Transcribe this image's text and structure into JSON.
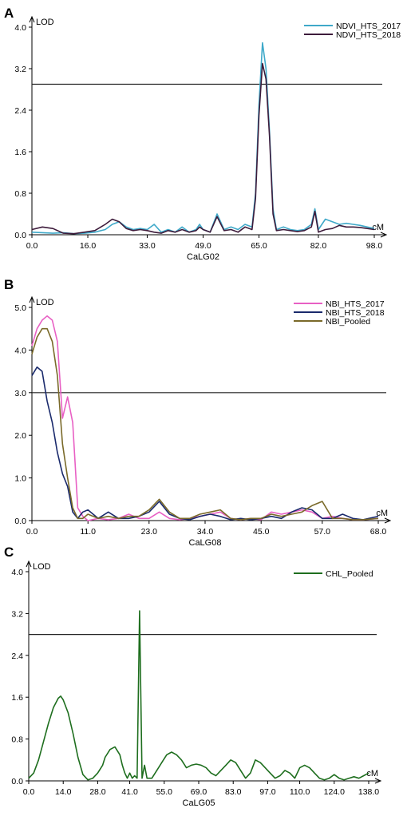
{
  "chart_data": [
    {
      "type": "line",
      "panel_label": "A",
      "ylabel": "LOD",
      "xunit": "cM",
      "xlabel": "CaLG02",
      "xlim": [
        0,
        98
      ],
      "ylim": [
        0,
        4.0
      ],
      "xticks": [
        0.0,
        16.0,
        33.0,
        49.0,
        65.0,
        82.0,
        98.0
      ],
      "xtick_labels": [
        "0.0",
        "16.0",
        "33.0",
        "49.0",
        "65.0",
        "82.0",
        "98.0"
      ],
      "yticks": [
        0.0,
        0.8,
        1.6,
        2.4,
        3.2,
        4.0
      ],
      "ytick_labels": [
        "0.0",
        "0.8",
        "1.6",
        "2.4",
        "3.2",
        "4.0"
      ],
      "threshold": 2.9,
      "legend_position": "top-right",
      "series": [
        {
          "name": "NDVI_HTS_2017",
          "color": "#3fa9c9",
          "x": [
            0,
            3,
            6,
            9,
            12,
            15,
            18,
            21,
            23,
            25,
            27,
            29,
            31,
            33,
            35,
            37,
            39,
            41,
            43,
            45,
            47,
            48,
            49,
            51,
            53,
            55,
            57,
            59,
            61,
            63,
            64,
            65,
            66,
            67,
            68,
            69,
            70,
            72,
            74,
            76,
            78,
            80,
            81,
            82,
            84,
            86,
            88,
            90,
            92,
            94,
            96,
            98
          ],
          "y": [
            0.05,
            0.04,
            0.03,
            0.04,
            0.02,
            0.03,
            0.05,
            0.1,
            0.2,
            0.25,
            0.15,
            0.1,
            0.12,
            0.1,
            0.2,
            0.05,
            0.1,
            0.05,
            0.15,
            0.05,
            0.1,
            0.2,
            0.1,
            0.05,
            0.4,
            0.1,
            0.15,
            0.1,
            0.2,
            0.15,
            0.8,
            2.5,
            3.7,
            3.2,
            2.0,
            0.5,
            0.1,
            0.15,
            0.1,
            0.08,
            0.1,
            0.2,
            0.5,
            0.1,
            0.3,
            0.25,
            0.2,
            0.22,
            0.2,
            0.18,
            0.15,
            0.12
          ]
        },
        {
          "name": "NDVI_HTS_2018",
          "color": "#3d1b3b",
          "x": [
            0,
            3,
            6,
            9,
            12,
            15,
            18,
            21,
            23,
            25,
            27,
            29,
            31,
            33,
            35,
            37,
            39,
            41,
            43,
            45,
            47,
            48,
            49,
            51,
            53,
            55,
            57,
            59,
            61,
            63,
            64,
            65,
            66,
            67,
            68,
            69,
            70,
            72,
            74,
            76,
            78,
            80,
            81,
            82,
            84,
            86,
            88,
            90,
            92,
            94,
            96,
            98
          ],
          "y": [
            0.1,
            0.15,
            0.12,
            0.03,
            0.02,
            0.05,
            0.08,
            0.2,
            0.3,
            0.25,
            0.12,
            0.08,
            0.1,
            0.08,
            0.05,
            0.03,
            0.08,
            0.05,
            0.1,
            0.05,
            0.08,
            0.15,
            0.1,
            0.05,
            0.35,
            0.08,
            0.1,
            0.05,
            0.15,
            0.1,
            0.7,
            2.3,
            3.3,
            3.0,
            1.9,
            0.4,
            0.08,
            0.1,
            0.08,
            0.06,
            0.08,
            0.15,
            0.45,
            0.05,
            0.1,
            0.12,
            0.18,
            0.15,
            0.15,
            0.14,
            0.12,
            0.1
          ]
        }
      ]
    },
    {
      "type": "line",
      "panel_label": "B",
      "ylabel": "LOD",
      "xunit": "cM",
      "xlabel": "CaLG08",
      "xlim": [
        0,
        68
      ],
      "ylim": [
        0,
        5.0
      ],
      "xticks": [
        0.0,
        11.0,
        23.0,
        34.0,
        45.0,
        57.0,
        68.0
      ],
      "xtick_labels": [
        "0.0",
        "11.0",
        "23.0",
        "34.0",
        "45.0",
        "57.0",
        "68.0"
      ],
      "yticks": [
        0.0,
        1.0,
        2.0,
        3.0,
        4.0,
        5.0
      ],
      "ytick_labels": [
        "0.0",
        "1.0",
        "2.0",
        "3.0",
        "4.0",
        "5.0"
      ],
      "threshold": 3.0,
      "legend_position": "top-right",
      "series": [
        {
          "name": "NBI_HTS_2017",
          "color": "#e860c4",
          "x": [
            0,
            1,
            2,
            3,
            4,
            5,
            6,
            7,
            8,
            9,
            10,
            11,
            13,
            15,
            17,
            19,
            21,
            23,
            25,
            27,
            29,
            31,
            33,
            35,
            37,
            39,
            41,
            43,
            45,
            47,
            49,
            51,
            53,
            55,
            57,
            59,
            61,
            63,
            65,
            68
          ],
          "y": [
            4.1,
            4.5,
            4.7,
            4.8,
            4.7,
            4.2,
            2.4,
            2.9,
            2.3,
            0.3,
            0.1,
            0.0,
            0.05,
            0.02,
            0.05,
            0.15,
            0.05,
            0.05,
            0.2,
            0.05,
            0.02,
            0.05,
            0.1,
            0.15,
            0.2,
            0.05,
            0.02,
            0.05,
            0.02,
            0.2,
            0.15,
            0.2,
            0.25,
            0.2,
            0.05,
            0.1,
            0.05,
            0.02,
            0.02,
            0.05
          ]
        },
        {
          "name": "NBI_HTS_2018",
          "color": "#1a2a6c",
          "x": [
            0,
            1,
            2,
            3,
            4,
            5,
            6,
            7,
            8,
            9,
            10,
            11,
            13,
            15,
            17,
            19,
            21,
            23,
            25,
            27,
            29,
            31,
            33,
            35,
            37,
            39,
            41,
            43,
            45,
            47,
            49,
            51,
            53,
            55,
            57,
            59,
            61,
            63,
            65,
            68
          ],
          "y": [
            3.4,
            3.6,
            3.5,
            2.8,
            2.3,
            1.6,
            1.1,
            0.8,
            0.2,
            0.05,
            0.2,
            0.25,
            0.05,
            0.2,
            0.05,
            0.05,
            0.1,
            0.2,
            0.45,
            0.15,
            0.05,
            0.02,
            0.1,
            0.15,
            0.1,
            0.02,
            0.05,
            0.02,
            0.05,
            0.1,
            0.05,
            0.2,
            0.3,
            0.25,
            0.05,
            0.05,
            0.15,
            0.05,
            0.02,
            0.1
          ]
        },
        {
          "name": "NBI_Pooled",
          "color": "#7a6a2a",
          "x": [
            0,
            1,
            2,
            3,
            4,
            5,
            6,
            7,
            8,
            9,
            10,
            11,
            13,
            15,
            17,
            19,
            21,
            23,
            25,
            27,
            29,
            31,
            33,
            35,
            37,
            39,
            41,
            43,
            45,
            47,
            49,
            51,
            53,
            55,
            57,
            59,
            61,
            63,
            65,
            68
          ],
          "y": [
            3.9,
            4.3,
            4.5,
            4.5,
            4.2,
            3.4,
            1.8,
            1.0,
            0.3,
            0.05,
            0.05,
            0.15,
            0.05,
            0.1,
            0.05,
            0.1,
            0.1,
            0.25,
            0.5,
            0.2,
            0.05,
            0.05,
            0.15,
            0.2,
            0.25,
            0.05,
            0.02,
            0.05,
            0.05,
            0.15,
            0.1,
            0.15,
            0.2,
            0.35,
            0.45,
            0.05,
            0.05,
            0.02,
            0.02,
            0.05
          ]
        }
      ]
    },
    {
      "type": "line",
      "panel_label": "C",
      "ylabel": "LOD",
      "xunit": "cM",
      "xlabel": "CaLG05",
      "xlim": [
        0,
        138
      ],
      "ylim": [
        0,
        4.0
      ],
      "xticks": [
        0.0,
        14.0,
        28.0,
        41.0,
        55.0,
        69.0,
        83.0,
        97.0,
        110.0,
        124.0,
        138.0
      ],
      "xtick_labels": [
        "0.0",
        "14.0",
        "28.0",
        "41.0",
        "55.0",
        "69.0",
        "83.0",
        "97.0",
        "110.0",
        "124.0",
        "138.0"
      ],
      "yticks": [
        0.0,
        0.8,
        1.6,
        2.4,
        3.2,
        4.0
      ],
      "ytick_labels": [
        "0.0",
        "0.8",
        "1.6",
        "2.4",
        "3.2",
        "4.0"
      ],
      "threshold": 2.8,
      "legend_position": "top-right",
      "series": [
        {
          "name": "CHL_Pooled",
          "color": "#1e6e1e",
          "x": [
            0,
            2,
            4,
            6,
            8,
            10,
            12,
            13,
            14,
            16,
            18,
            20,
            22,
            24,
            26,
            28,
            30,
            31,
            33,
            35,
            37,
            38,
            39,
            40,
            41,
            42,
            43,
            44,
            45,
            46,
            47,
            48,
            50,
            52,
            54,
            56,
            58,
            60,
            62,
            64,
            66,
            68,
            70,
            72,
            74,
            76,
            78,
            80,
            82,
            84,
            86,
            88,
            90,
            92,
            94,
            96,
            98,
            100,
            102,
            104,
            106,
            108,
            110,
            112,
            114,
            116,
            118,
            120,
            122,
            124,
            126,
            128,
            130,
            132,
            134,
            136,
            138
          ],
          "y": [
            0.05,
            0.15,
            0.4,
            0.75,
            1.1,
            1.4,
            1.58,
            1.62,
            1.55,
            1.3,
            0.9,
            0.45,
            0.12,
            0.02,
            0.05,
            0.15,
            0.3,
            0.45,
            0.6,
            0.65,
            0.5,
            0.3,
            0.15,
            0.05,
            0.15,
            0.05,
            0.1,
            0.05,
            3.25,
            0.05,
            0.3,
            0.05,
            0.05,
            0.2,
            0.35,
            0.5,
            0.55,
            0.5,
            0.4,
            0.25,
            0.3,
            0.32,
            0.3,
            0.25,
            0.15,
            0.1,
            0.2,
            0.3,
            0.4,
            0.35,
            0.2,
            0.05,
            0.15,
            0.4,
            0.35,
            0.25,
            0.15,
            0.05,
            0.1,
            0.2,
            0.15,
            0.05,
            0.25,
            0.3,
            0.25,
            0.15,
            0.05,
            0.02,
            0.05,
            0.12,
            0.05,
            0.02,
            0.05,
            0.08,
            0.05,
            0.1,
            0.15
          ]
        }
      ]
    }
  ]
}
